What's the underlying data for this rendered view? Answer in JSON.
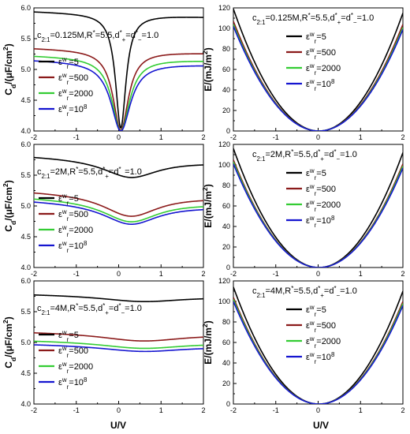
{
  "figure": {
    "x_title_left": "U/V",
    "x_title_right": "U/V"
  },
  "chart_data": [
    {
      "id": "cd-a",
      "type": "line",
      "annotation": "c2:1=0.125M,R*=5.5,d*+=d*−=1.0",
      "ylabel": "Cd/(μF/cm²)",
      "xlim": [
        -2,
        2
      ],
      "ylim": [
        4.0,
        6.0
      ],
      "xticks": [
        "-2",
        "-1",
        "0",
        "1",
        "2"
      ],
      "yticks": [
        "4.0",
        "4.5",
        "5.0",
        "5.5",
        "6.0"
      ],
      "legend_position": "bottom-left",
      "model": "cd",
      "u0": 0.05,
      "series": [
        {
          "name": "εwr=5",
          "color": "#000000",
          "base": 5.9,
          "drop": 1.85,
          "w": 0.15,
          "slope": -0.022
        },
        {
          "name": "εwr=500",
          "color": "#8b1a1a",
          "base": 5.31,
          "drop": 1.3,
          "w": 0.22,
          "slope": -0.02
        },
        {
          "name": "εwr=2000",
          "color": "#33cc33",
          "base": 5.19,
          "drop": 1.19,
          "w": 0.25,
          "slope": -0.02
        },
        {
          "name": "εwr=10^8",
          "color": "#1515d0",
          "base": 5.12,
          "drop": 1.12,
          "w": 0.28,
          "slope": -0.02
        }
      ]
    },
    {
      "id": "e-a",
      "type": "line",
      "annotation": "c2:1=0.125M,R*=5.5,d*+=d*−=1.0",
      "ylabel": "E/(mJ/m²)",
      "xlim": [
        -2,
        2
      ],
      "ylim": [
        0,
        120
      ],
      "xticks": [
        "-2",
        "-1",
        "0",
        "1",
        "2"
      ],
      "yticks": [
        "0",
        "20",
        "40",
        "60",
        "80",
        "100",
        "120"
      ],
      "legend_position": "top-right",
      "model": "energy",
      "series": [
        {
          "name": "εwr=5",
          "color": "#000000",
          "at_minus2": 119,
          "at_plus2": 115
        },
        {
          "name": "εwr=500",
          "color": "#8b1a1a",
          "at_minus2": 107,
          "at_plus2": 104
        },
        {
          "name": "εwr=2000",
          "color": "#33cc33",
          "at_minus2": 104,
          "at_plus2": 101
        },
        {
          "name": "εwr=10^8",
          "color": "#1515d0",
          "at_minus2": 102,
          "at_plus2": 99
        }
      ]
    },
    {
      "id": "cd-b",
      "type": "line",
      "annotation": "c2:1=2M,R*=5.5,d*+=d*−=1.0",
      "ylabel": "Cd/(μF/cm²)",
      "xlim": [
        -2,
        2
      ],
      "ylim": [
        4.0,
        6.0
      ],
      "xticks": [
        "-2",
        "-1",
        "0",
        "1",
        "2"
      ],
      "yticks": [
        "4.0",
        "4.5",
        "5.0",
        "5.5",
        "6.0"
      ],
      "legend_position": "bottom-left",
      "model": "cd",
      "u0": 0.28,
      "series": [
        {
          "name": "εwr=5",
          "color": "#000000",
          "base": 5.77,
          "drop": 0.3,
          "w": 0.8,
          "slope": -0.025
        },
        {
          "name": "εwr=500",
          "color": "#8b1a1a",
          "base": 5.2,
          "drop": 0.36,
          "w": 0.8,
          "slope": -0.025
        },
        {
          "name": "εwr=2000",
          "color": "#33cc33",
          "base": 5.1,
          "drop": 0.35,
          "w": 0.8,
          "slope": -0.025
        },
        {
          "name": "εwr=10^8",
          "color": "#1515d0",
          "base": 5.05,
          "drop": 0.34,
          "w": 0.8,
          "slope": -0.025
        }
      ]
    },
    {
      "id": "e-b",
      "type": "line",
      "annotation": "c2:1=2M,R*=5.5,d*+=d*−=1.0",
      "ylabel": "E/(mJ/m²)",
      "xlim": [
        -2,
        2
      ],
      "ylim": [
        0,
        120
      ],
      "xticks": [
        "-2",
        "-1",
        "0",
        "1",
        "2"
      ],
      "yticks": [
        "0",
        "20",
        "40",
        "60",
        "80",
        "100",
        "120"
      ],
      "legend_position": "top-right",
      "model": "energy",
      "series": [
        {
          "name": "εwr=5",
          "color": "#000000",
          "at_minus2": 116,
          "at_plus2": 112
        },
        {
          "name": "εwr=500",
          "color": "#8b1a1a",
          "at_minus2": 105,
          "at_plus2": 101
        },
        {
          "name": "εwr=2000",
          "color": "#33cc33",
          "at_minus2": 103,
          "at_plus2": 99
        },
        {
          "name": "εwr=10^8",
          "color": "#1515d0",
          "at_minus2": 101,
          "at_plus2": 97
        }
      ]
    },
    {
      "id": "cd-c",
      "type": "line",
      "annotation": "c2:1=4M,R*=5.5,d*+=d*−=1.0",
      "ylabel": "Cd/(μF/cm²)",
      "xlim": [
        -2,
        2
      ],
      "ylim": [
        4.0,
        6.0
      ],
      "xticks": [
        "-2",
        "-1",
        "0",
        "1",
        "2"
      ],
      "yticks": [
        "4.0",
        "4.5",
        "5.0",
        "5.5",
        "6.0"
      ],
      "legend_position": "bottom-left",
      "model": "cd",
      "u0": 0.55,
      "series": [
        {
          "name": "εwr=5",
          "color": "#000000",
          "base": 5.77,
          "drop": 0.1,
          "w": 1.2,
          "slope": -0.01
        },
        {
          "name": "εwr=500",
          "color": "#8b1a1a",
          "base": 5.16,
          "drop": 0.13,
          "w": 1.2,
          "slope": -0.01
        },
        {
          "name": "εwr=2000",
          "color": "#33cc33",
          "base": 5.02,
          "drop": 0.11,
          "w": 1.2,
          "slope": -0.01
        },
        {
          "name": "εwr=10^8",
          "color": "#1515d0",
          "base": 4.96,
          "drop": 0.1,
          "w": 1.2,
          "slope": -0.01
        }
      ]
    },
    {
      "id": "e-c",
      "type": "line",
      "annotation": "c2:1=4M,R*=5.5,d*+=d*−=1.0",
      "ylabel": "E/(mJ/m²)",
      "xlim": [
        -2,
        2
      ],
      "ylim": [
        0,
        120
      ],
      "xticks": [
        "-2",
        "-1",
        "0",
        "1",
        "2"
      ],
      "yticks": [
        "0",
        "20",
        "40",
        "60",
        "80",
        "100",
        "120"
      ],
      "legend_position": "top-right",
      "model": "energy",
      "series": [
        {
          "name": "εwr=5",
          "color": "#000000",
          "at_minus2": 114,
          "at_plus2": 110
        },
        {
          "name": "εwr=500",
          "color": "#8b1a1a",
          "at_minus2": 104,
          "at_plus2": 100
        },
        {
          "name": "εwr=2000",
          "color": "#33cc33",
          "at_minus2": 102,
          "at_plus2": 98
        },
        {
          "name": "εwr=10^8",
          "color": "#1515d0",
          "at_minus2": 100,
          "at_plus2": 96
        }
      ]
    }
  ]
}
